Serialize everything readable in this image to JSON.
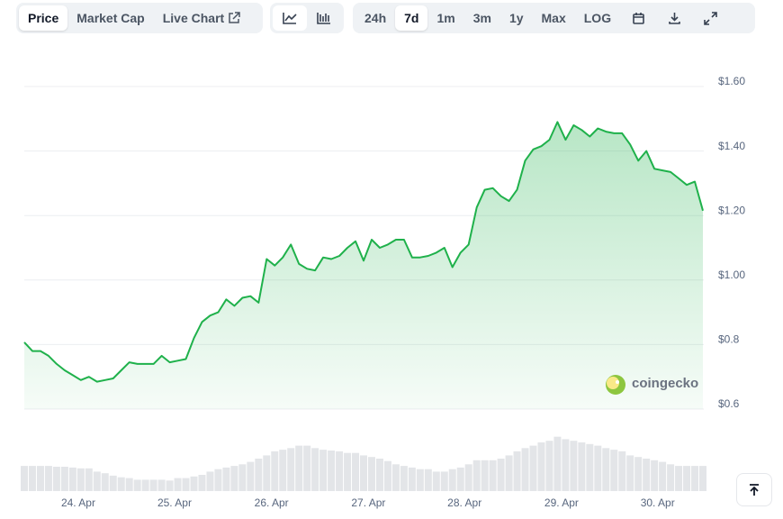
{
  "toolbar": {
    "tabs": [
      "Price",
      "Market Cap",
      "Live Chart"
    ],
    "ranges": [
      "24h",
      "7d",
      "1m",
      "3m",
      "1y",
      "Max",
      "LOG"
    ]
  },
  "chart_data": {
    "type": "area",
    "watermark": "coingecko",
    "series": [
      {
        "color": "#1fb14b",
        "values": [
          0.807,
          0.78,
          0.78,
          0.765,
          0.74,
          0.72,
          0.705,
          0.69,
          0.7,
          0.685,
          0.69,
          0.695,
          0.72,
          0.745,
          0.74,
          0.74,
          0.74,
          0.765,
          0.745,
          0.75,
          0.755,
          0.82,
          0.87,
          0.89,
          0.9,
          0.94,
          0.92,
          0.945,
          0.95,
          0.93,
          1.065,
          1.045,
          1.07,
          1.11,
          1.05,
          1.035,
          1.03,
          1.07,
          1.065,
          1.075,
          1.1,
          1.12,
          1.06,
          1.125,
          1.1,
          1.11,
          1.125,
          1.125,
          1.07,
          1.07,
          1.075,
          1.085,
          1.1,
          1.04,
          1.085,
          1.11,
          1.225,
          1.28,
          1.285,
          1.26,
          1.245,
          1.28,
          1.37,
          1.405,
          1.415,
          1.435,
          1.49,
          1.435,
          1.48,
          1.465,
          1.445,
          1.47,
          1.46,
          1.455,
          1.455,
          1.42,
          1.37,
          1.4,
          1.345,
          1.34,
          1.335,
          1.315,
          1.295,
          1.305,
          1.215
        ]
      }
    ],
    "xlim": [
      0,
      84
    ],
    "xticks": [
      {
        "value": 6.68,
        "label": "24. Apr"
      },
      {
        "value": 18.6,
        "label": "25. Apr"
      },
      {
        "value": 30.6,
        "label": "26. Apr"
      },
      {
        "value": 42.6,
        "label": "27. Apr"
      },
      {
        "value": 54.5,
        "label": "28. Apr"
      },
      {
        "value": 66.5,
        "label": "29. Apr"
      },
      {
        "value": 78.4,
        "label": "30. Apr"
      }
    ],
    "ylim": [
      0.6,
      1.6
    ],
    "yticks": [
      {
        "value": 0.6,
        "label": "$0.6"
      },
      {
        "value": 0.8,
        "label": "$0.8"
      },
      {
        "value": 1.0,
        "label": "$1.00"
      },
      {
        "value": 1.2,
        "label": "$1.20"
      },
      {
        "value": 1.4,
        "label": "$1.40"
      },
      {
        "value": 1.6,
        "label": "$1.60"
      }
    ],
    "grid": true,
    "volume_color": "#e3e5e8",
    "volume_ylim": [
      0,
      100
    ],
    "volume_values": [
      31,
      31,
      31,
      31,
      30,
      30,
      29,
      28,
      28,
      24,
      22,
      19,
      17,
      16,
      14,
      14,
      14,
      14,
      13,
      16,
      16,
      18,
      20,
      24,
      27,
      29,
      31,
      33,
      36,
      40,
      44,
      49,
      51,
      53,
      56,
      56,
      53,
      51,
      50,
      49,
      47,
      47,
      44,
      42,
      40,
      37,
      33,
      31,
      29,
      27,
      27,
      24,
      24,
      27,
      29,
      33,
      38,
      38,
      38,
      40,
      44,
      49,
      53,
      56,
      60,
      62,
      67,
      64,
      62,
      60,
      58,
      56,
      53,
      51,
      49,
      44,
      42,
      40,
      38,
      36,
      33,
      31,
      31,
      31,
      31
    ]
  }
}
